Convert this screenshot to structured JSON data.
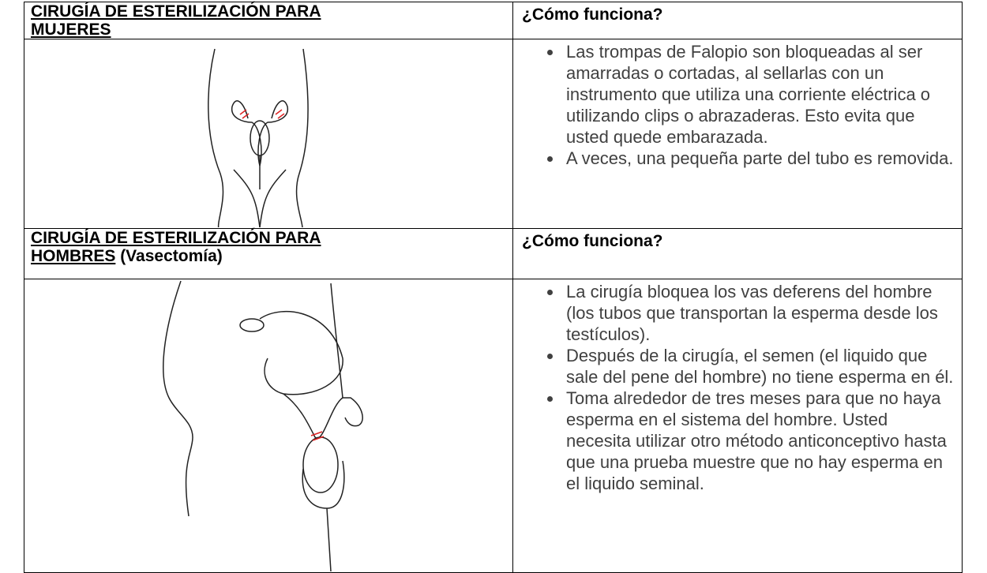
{
  "rows": [
    {
      "heading": "CIRUGÍA DE ESTERILIZACIÓN PARA MUJERES",
      "question": "¿Cómo funciona?",
      "bullets": [
        "Las trompas de Falopio son bloqueadas al ser amarradas o cortadas, al sellarlas con un instrumento que utiliza una corriente eléctrica o utilizando clips o abrazaderas. Esto evita que usted quede embarazada.",
        "A veces, una pequeña parte del tubo es removida."
      ]
    },
    {
      "heading": "CIRUGÍA DE ESTERILIZACIÓN PARA HOMBRES",
      "heading_note": "(Vasectomía)",
      "question": "¿Cómo funciona?",
      "bullets": [
        "La cirugía bloquea los vas deferens del hombre (los tubos que transportan la esperma desde los testículos).",
        "Después de la cirugía, el semen (el liquido que sale del pene del hombre) no tiene esperma en él.",
        "Toma alrededor de tres meses para que no haya esperma en el sistema del hombre. Usted necesita utilizar otro método anticonceptivo hasta que una prueba muestre que no hay esperma en el liquido seminal."
      ]
    }
  ]
}
